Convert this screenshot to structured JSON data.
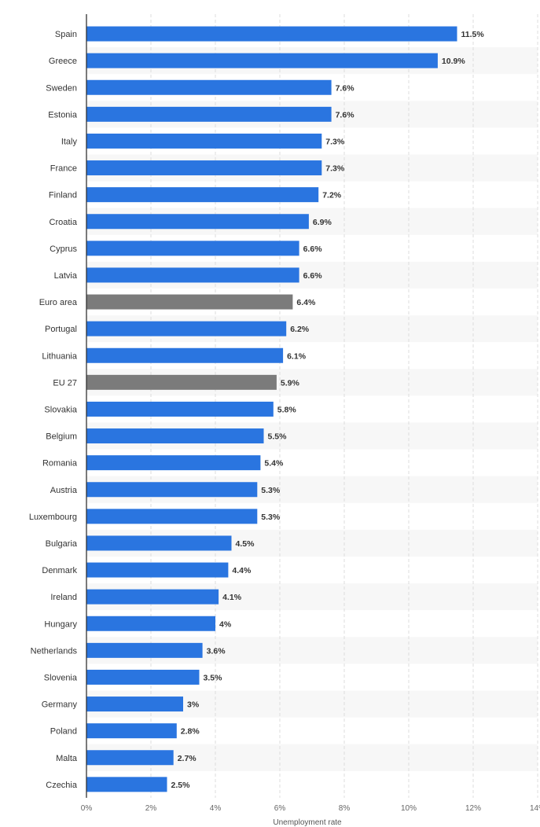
{
  "chart_data": {
    "type": "bar",
    "orientation": "horizontal",
    "categories": [
      "Spain",
      "Greece",
      "Sweden",
      "Estonia",
      "Italy",
      "France",
      "Finland",
      "Croatia",
      "Cyprus",
      "Latvia",
      "Euro area",
      "Portugal",
      "Lithuania",
      "EU 27",
      "Slovakia",
      "Belgium",
      "Romania",
      "Austria",
      "Luxembourg",
      "Bulgaria",
      "Denmark",
      "Ireland",
      "Hungary",
      "Netherlands",
      "Slovenia",
      "Germany",
      "Poland",
      "Malta",
      "Czechia"
    ],
    "values": [
      11.5,
      10.9,
      7.6,
      7.6,
      7.3,
      7.3,
      7.2,
      6.9,
      6.6,
      6.6,
      6.4,
      6.2,
      6.1,
      5.9,
      5.8,
      5.5,
      5.4,
      5.3,
      5.3,
      4.5,
      4.4,
      4.1,
      4,
      3.6,
      3.5,
      3,
      2.8,
      2.7,
      2.5
    ],
    "value_labels": [
      "11.5%",
      "10.9%",
      "7.6%",
      "7.6%",
      "7.3%",
      "7.3%",
      "7.2%",
      "6.9%",
      "6.6%",
      "6.6%",
      "6.4%",
      "6.2%",
      "6.1%",
      "5.9%",
      "5.8%",
      "5.5%",
      "5.4%",
      "5.3%",
      "5.3%",
      "4.5%",
      "4.4%",
      "4.1%",
      "4%",
      "3.6%",
      "3.5%",
      "3%",
      "2.8%",
      "2.7%",
      "2.5%"
    ],
    "highlighted": [
      "Euro area",
      "EU 27"
    ],
    "xlabel": "Unemployment rate",
    "xlim": [
      0,
      14
    ],
    "xticks": [
      0,
      2,
      4,
      6,
      8,
      10,
      12,
      14
    ],
    "xtick_labels": [
      "0%",
      "2%",
      "4%",
      "6%",
      "8%",
      "10%",
      "12%",
      "14%"
    ],
    "grid": true,
    "colors": {
      "bar": "#2a75e0",
      "highlight_bar": "#7b7b7b",
      "stripe": "#f7f7f7",
      "grid": "#dddddd",
      "axis": "#333333"
    }
  }
}
